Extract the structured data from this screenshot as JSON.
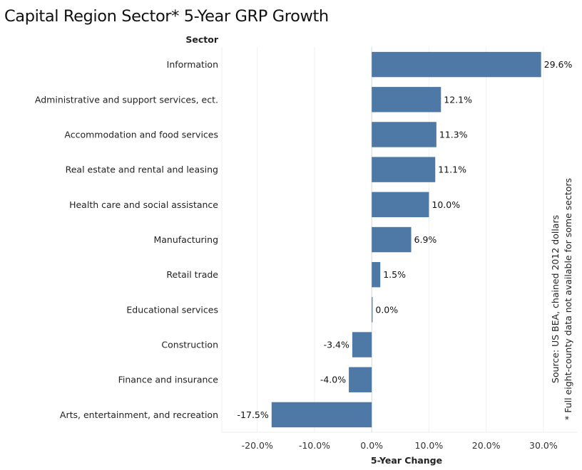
{
  "chart_data": {
    "type": "bar",
    "orientation": "horizontal",
    "title": "Capital Region Sector* 5-Year GRP Growth",
    "row_header": "Sector",
    "xlabel": "5-Year Change",
    "ylabel": "Sector",
    "categories": [
      "Information",
      "Administrative and support services, ect.",
      "Accommodation and food services",
      "Real estate and rental and leasing",
      "Health care and social assistance",
      "Manufacturing",
      "Retail trade",
      "Educational services",
      "Construction",
      "Finance and insurance",
      "Arts, entertainment, and recreation"
    ],
    "values": [
      29.6,
      12.1,
      11.3,
      11.1,
      10.0,
      6.9,
      1.5,
      0.0,
      -3.4,
      -4.0,
      -17.5
    ],
    "value_labels": [
      "29.6%",
      "12.1%",
      "11.3%",
      "11.1%",
      "10.0%",
      "6.9%",
      "1.5%",
      "0.0%",
      "-3.4%",
      "-4.0%",
      "-17.5%"
    ],
    "unit": "%",
    "xlim": [
      -26.2,
      36
    ],
    "xticks": [
      -20,
      -10,
      0,
      10,
      20,
      30
    ],
    "xtick_labels": [
      "-20.0%",
      "-10.0%",
      "0.0%",
      "10.0%",
      "20.0%",
      "30.0%"
    ],
    "grid": "vertical",
    "legend": "none",
    "bar_color": "#4e79a7",
    "notes": [
      "Source: US BEA, chained 2012 dollars",
      "* Full eight-county data not available for some sectors"
    ]
  }
}
